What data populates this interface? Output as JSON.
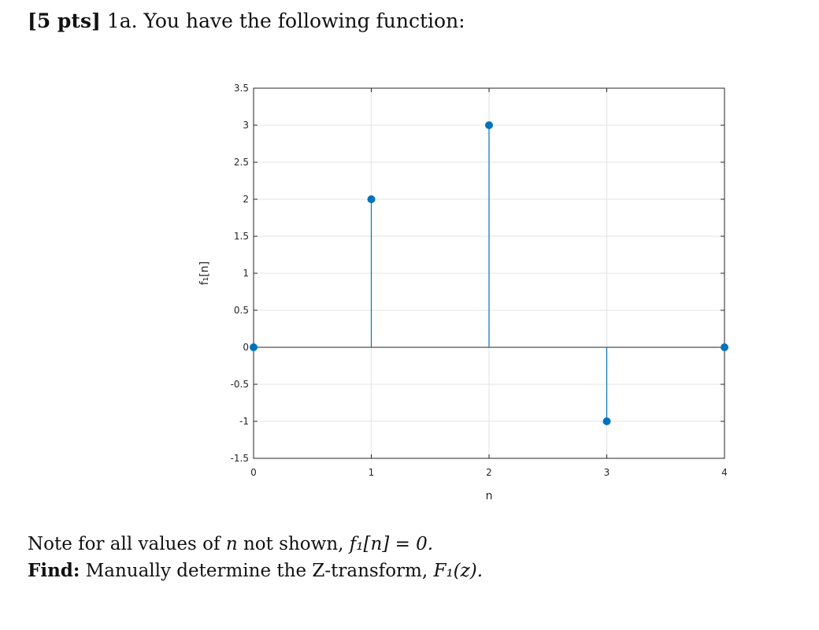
{
  "problem": {
    "points": "[5 pts]",
    "number": "1a.",
    "prompt": "You have the following function:"
  },
  "note": {
    "prefix": "Note for all values of",
    "var": "n",
    "middle": "not shown,",
    "expr": "f₁[n] = 0."
  },
  "find": {
    "label": "Find:",
    "text": "Manually determine the Z-transform,",
    "expr": "F₁(z)."
  },
  "chart_data": {
    "type": "stem",
    "x": [
      0,
      1,
      2,
      3,
      4
    ],
    "y": [
      0,
      2,
      3,
      -1,
      0
    ],
    "xlabel": "n",
    "ylabel": "f₁[n]",
    "xlim": [
      0,
      4
    ],
    "ylim": [
      -1.5,
      3.5
    ],
    "xticks": [
      "0",
      "1",
      "2",
      "3",
      "4"
    ],
    "yticks": [
      "-1.5",
      "-1",
      "-0.5",
      "0",
      "0.5",
      "1",
      "1.5",
      "2",
      "2.5",
      "3",
      "3.5"
    ],
    "grid": true,
    "color": "#0072BD"
  }
}
